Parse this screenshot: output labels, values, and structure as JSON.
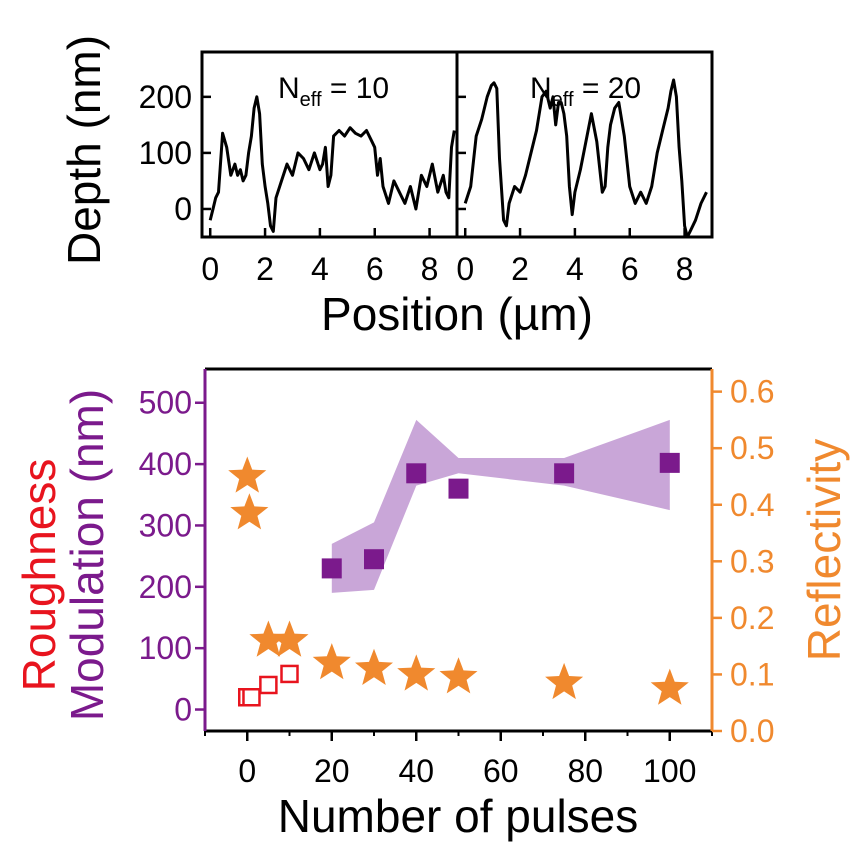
{
  "chart_data": [
    {
      "type": "line",
      "title": "",
      "xlabel": "Position (µm)",
      "ylabel": "Depth (nm)",
      "panels": [
        {
          "label_base": "N",
          "label_sub": "eff",
          "label_value": " = 10",
          "xlim": [
            -0.3,
            9.0
          ],
          "xticks": [
            0,
            2,
            4,
            6,
            8
          ],
          "series": [
            {
              "x": [
                0,
                0.1,
                0.2,
                0.3,
                0.45,
                0.6,
                0.75,
                0.9,
                1.0,
                1.1,
                1.2,
                1.3,
                1.4,
                1.5,
                1.6,
                1.7,
                1.8,
                1.9,
                2.0,
                2.1,
                2.2,
                2.3,
                2.4,
                2.6,
                2.8,
                3.0,
                3.2,
                3.4,
                3.6,
                3.8,
                4.0,
                4.1,
                4.2,
                4.3,
                4.4,
                4.5,
                4.7,
                4.9,
                5.1,
                5.3,
                5.5,
                5.7,
                5.9,
                6.0,
                6.1,
                6.2,
                6.3,
                6.5,
                6.7,
                6.9,
                7.1,
                7.3,
                7.5,
                7.7,
                7.9,
                8.1,
                8.3,
                8.5,
                8.6,
                8.7,
                8.8,
                8.9
              ],
              "y": [
                -20,
                0,
                20,
                30,
                135,
                110,
                60,
                80,
                60,
                70,
                50,
                60,
                100,
                130,
                180,
                200,
                170,
                80,
                40,
                10,
                -30,
                -40,
                20,
                50,
                80,
                60,
                100,
                90,
                70,
                100,
                70,
                80,
                110,
                40,
                60,
                130,
                140,
                130,
                145,
                135,
                130,
                140,
                120,
                110,
                60,
                90,
                40,
                10,
                50,
                30,
                10,
                40,
                0,
                60,
                40,
                80,
                30,
                60,
                30,
                20,
                110,
                140
              ]
            }
          ]
        },
        {
          "label_base": "N",
          "label_sub": "eff",
          "label_value": " = 20",
          "xlim": [
            -0.3,
            9.0
          ],
          "xticks": [
            0,
            2,
            4,
            6,
            8
          ],
          "series": [
            {
              "x": [
                0,
                0.2,
                0.4,
                0.6,
                0.8,
                0.95,
                1.05,
                1.15,
                1.25,
                1.4,
                1.5,
                1.6,
                1.8,
                2.0,
                2.2,
                2.4,
                2.6,
                2.8,
                2.95,
                3.1,
                3.2,
                3.3,
                3.4,
                3.5,
                3.6,
                3.7,
                3.8,
                3.9,
                4.0,
                4.2,
                4.4,
                4.6,
                4.8,
                5.0,
                5.1,
                5.2,
                5.3,
                5.45,
                5.6,
                5.8,
                6.0,
                6.2,
                6.4,
                6.6,
                6.8,
                7.0,
                7.2,
                7.4,
                7.5,
                7.6,
                7.7,
                7.8,
                7.9,
                8.0,
                8.1,
                8.2,
                8.4,
                8.6,
                8.8
              ],
              "y": [
                10,
                40,
                130,
                160,
                200,
                220,
                225,
                215,
                90,
                -20,
                -30,
                10,
                40,
                30,
                60,
                100,
                140,
                200,
                210,
                180,
                200,
                150,
                190,
                190,
                170,
                130,
                40,
                -10,
                30,
                70,
                120,
                170,
                120,
                30,
                40,
                110,
                150,
                180,
                190,
                130,
                40,
                10,
                30,
                10,
                40,
                100,
                140,
                180,
                210,
                230,
                200,
                110,
                50,
                -30,
                -50,
                -40,
                -20,
                10,
                30
              ]
            }
          ]
        }
      ],
      "ylim": [
        -50,
        280
      ],
      "yticks": [
        0,
        100,
        200
      ]
    },
    {
      "type": "scatter",
      "title": "",
      "xlabel": "Number of pulses",
      "ylabel_left_line1": "Roughness",
      "ylabel_left_line2": "Modulation (nm)",
      "ylabel_right": "Reflectivity",
      "xlim": [
        -10,
        110
      ],
      "xticks": [
        0,
        20,
        40,
        60,
        80,
        100
      ],
      "ylim_left": [
        -35,
        555
      ],
      "yticks_left": [
        0,
        100,
        200,
        300,
        400,
        500
      ],
      "ylim_right": [
        0,
        0.64
      ],
      "yticks_right": [
        "0.0",
        "0.1",
        "0.2",
        "0.3",
        "0.4",
        "0.5",
        "0.6"
      ],
      "modulation": {
        "x": [
          20,
          30,
          40,
          50,
          75,
          100
        ],
        "y": [
          230,
          245,
          385,
          360,
          385,
          402
        ],
        "color": "#7b1a8c"
      },
      "modulation_band": {
        "x": [
          20,
          30,
          40,
          50,
          75,
          100
        ],
        "upper": [
          270,
          305,
          472,
          410,
          410,
          472
        ],
        "lower": [
          190,
          195,
          365,
          385,
          365,
          325
        ],
        "color": "#c9a6d8"
      },
      "roughness": {
        "x": [
          0,
          1,
          5,
          10
        ],
        "y": [
          20,
          20,
          40,
          58
        ],
        "color": "#e8141e"
      },
      "reflectivity": {
        "x": [
          0,
          0.5,
          5,
          10,
          20,
          30,
          40,
          50,
          75,
          100
        ],
        "y": [
          0.45,
          0.385,
          0.16,
          0.16,
          0.12,
          0.11,
          0.1,
          0.095,
          0.085,
          0.075
        ],
        "color": "#f0892e"
      }
    }
  ],
  "colors": {
    "axis": "#000000",
    "left_axis": "#7b1a8c",
    "right_axis": "#f0892e",
    "roughness_label": "#e8141e"
  }
}
